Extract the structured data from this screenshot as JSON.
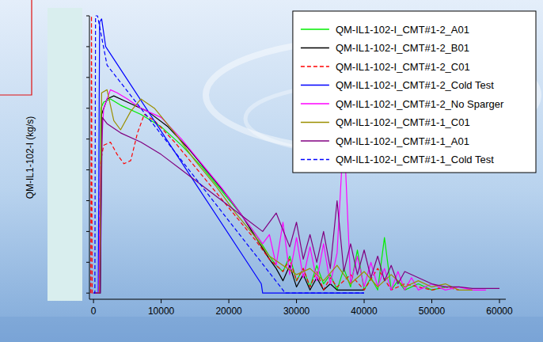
{
  "chart_data": {
    "type": "line",
    "y_label": "QM-IL1-102-I (kg/s)",
    "xlim": [
      -600,
      60000
    ],
    "xticks": [
      0,
      10000,
      20000,
      30000,
      40000,
      50000,
      60000
    ],
    "ylim": [
      -0.2,
      9
    ],
    "yticks": [
      0,
      1,
      2,
      3,
      4,
      5,
      6,
      7,
      8,
      9
    ],
    "tick_labels": "x",
    "grid": false,
    "legend": "top-right",
    "series": [
      {
        "name": "QM-IL1-102-I_CMT#1-2_A01",
        "color": "#00ee00",
        "line_style": "solid",
        "x": [
          0,
          900,
          1100,
          1500,
          2500,
          4000,
          7000,
          10000,
          13000,
          16000,
          19000,
          22000,
          24000,
          26000,
          27000,
          28000,
          29000,
          30000,
          31000,
          32000,
          33000,
          34000,
          35000,
          36000,
          37000,
          38000,
          39000,
          40000,
          41000,
          42000,
          43000,
          44000,
          45000,
          46000,
          48000,
          50000,
          52000
        ],
        "values": [
          0,
          0,
          6.0,
          6.2,
          6.3,
          6.1,
          5.8,
          5.4,
          4.8,
          4.1,
          3.3,
          2.5,
          1.9,
          1.2,
          0.9,
          0.7,
          1.2,
          0.4,
          0.8,
          0.2,
          0.9,
          0.3,
          0.6,
          0.1,
          0.8,
          0.2,
          1.4,
          0.1,
          0.5,
          0.1,
          1.8,
          0.1,
          0.4,
          0.1,
          0.3,
          0.1,
          0.2
        ]
      },
      {
        "name": "QM-IL1-102-I_CMT#1-2_B01",
        "color": "#000000",
        "line_style": "solid",
        "x": [
          0,
          1000,
          1200,
          2000,
          3000,
          5000,
          8000,
          11000,
          14000,
          17000,
          20000,
          22000,
          24000,
          26000,
          27000,
          28000,
          29000,
          30000,
          31000,
          32000,
          33000,
          34000,
          35000,
          36000,
          38000,
          40000
        ],
        "values": [
          0,
          0,
          5.8,
          6.3,
          6.4,
          6.2,
          5.9,
          5.4,
          4.7,
          3.9,
          3.1,
          2.5,
          1.8,
          1.1,
          0.8,
          0.4,
          0.9,
          0.2,
          0.6,
          0.1,
          0.5,
          0.1,
          0.3,
          0.1,
          0.1,
          0.1
        ]
      },
      {
        "name": "QM-IL1-102-I_CMT#1-2_C01",
        "color": "#ff0000",
        "line_style": "dashed",
        "x": [
          -400,
          -300,
          -200,
          800,
          1000,
          1500,
          2500,
          3500,
          4500,
          5500,
          6500,
          7500,
          9000,
          12000,
          15000,
          18000,
          21000,
          24000,
          26000,
          28000,
          29000,
          30000,
          31000,
          32000,
          33000,
          34000,
          35000,
          36000,
          38000,
          40000,
          42000,
          44000,
          46000,
          48000,
          50000,
          52000,
          54000
        ],
        "values": [
          0,
          9.0,
          0,
          0,
          4.2,
          4.8,
          4.9,
          4.5,
          4.2,
          4.3,
          5.2,
          5.8,
          5.6,
          4.9,
          4.1,
          3.3,
          2.5,
          1.7,
          1.1,
          0.7,
          1.1,
          0.4,
          0.8,
          0.2,
          0.7,
          0.1,
          0.5,
          0.2,
          0.6,
          0.1,
          0.8,
          0.1,
          0.3,
          0.2,
          0.1,
          0.2,
          0.1
        ]
      },
      {
        "name": "QM-IL1-102-I_CMT#1-2_Cold Test",
        "color": "#0000ff",
        "line_style": "solid",
        "x": [
          0,
          700,
          900,
          1200,
          1800,
          24800,
          25000,
          40000
        ],
        "values": [
          0,
          0,
          8.8,
          8.9,
          8.0,
          0.3,
          0,
          0
        ]
      },
      {
        "name": "QM-IL1-102-I_CMT#1-2_No Sparger",
        "color": "#ff00ff",
        "line_style": "solid",
        "x": [
          0,
          800,
          1000,
          1500,
          2500,
          3500,
          5000,
          7000,
          10000,
          13000,
          16000,
          19000,
          21000,
          23000,
          25000,
          26000,
          27000,
          28000,
          29000,
          30000,
          31000,
          32000,
          33000,
          34000,
          35000,
          36000,
          37000,
          38000,
          39000,
          40000,
          41000,
          42000,
          43000,
          44000,
          45000,
          46000,
          47000,
          48000,
          50000,
          52000,
          54000,
          56000,
          58000
        ],
        "values": [
          0,
          0,
          4.0,
          6.0,
          6.6,
          6.5,
          6.3,
          6.0,
          5.7,
          5.0,
          4.2,
          3.4,
          2.8,
          2.2,
          1.6,
          1.9,
          0.9,
          2.3,
          0.6,
          1.8,
          0.5,
          1.5,
          0.4,
          1.6,
          0.3,
          1.3,
          5.3,
          0.3,
          1.2,
          0.2,
          1.0,
          0.2,
          0.8,
          0.1,
          0.7,
          0.1,
          0.5,
          0.1,
          0.3,
          0.1,
          0.2,
          0.1,
          0.1
        ]
      },
      {
        "name": "QM-IL1-102-I_CMT#1-1_C01",
        "color": "#9b8f00",
        "line_style": "solid",
        "x": [
          0,
          900,
          1200,
          2000,
          3000,
          4000,
          5500,
          7000,
          9000,
          12000,
          15000,
          18000,
          21000,
          24000,
          26000,
          28000,
          30000,
          32000,
          34000,
          36000,
          38000,
          40000,
          42000,
          44000,
          46000,
          48000,
          50000,
          52000,
          54000,
          56000
        ],
        "values": [
          0,
          0,
          6.5,
          6.6,
          5.6,
          5.3,
          5.9,
          6.3,
          6.0,
          5.2,
          4.3,
          3.5,
          2.6,
          1.8,
          1.2,
          0.9,
          0.6,
          0.8,
          0.4,
          0.9,
          0.3,
          0.7,
          0.2,
          0.6,
          0.2,
          0.4,
          0.2,
          0.3,
          0.1,
          0.1
        ]
      },
      {
        "name": "QM-IL1-102-I_CMT#1-1_A01",
        "color": "#800080",
        "line_style": "solid",
        "x": [
          0,
          1000,
          1300,
          2000,
          4000,
          7000,
          10000,
          13000,
          16000,
          19000,
          22000,
          25000,
          27000,
          29000,
          30000,
          31000,
          32000,
          33000,
          34000,
          35000,
          36000,
          37000,
          38000,
          39000,
          40000,
          41000,
          42000,
          43000,
          44000,
          45000,
          46000,
          48000,
          50000,
          52000,
          54000,
          56000,
          58000,
          60000
        ],
        "values": [
          0,
          0,
          5.7,
          5.5,
          5.2,
          4.9,
          4.5,
          4.0,
          3.5,
          3.0,
          2.5,
          2.0,
          2.6,
          1.5,
          2.3,
          1.1,
          1.9,
          1.0,
          2.0,
          0.8,
          3.0,
          0.7,
          1.6,
          0.6,
          1.4,
          0.5,
          1.2,
          0.4,
          0.9,
          0.3,
          0.7,
          0.5,
          0.3,
          0.2,
          0.2,
          0.15,
          0.15,
          0.15
        ]
      },
      {
        "name": "QM-IL1-102-I_CMT#1-1_Cold Test",
        "color": "#0000ff",
        "line_style": "dashed",
        "x": [
          0,
          200,
          300,
          600,
          2000,
          28000,
          28300,
          40000
        ],
        "values": [
          0,
          0,
          9.0,
          9.0,
          7.4,
          0.1,
          0,
          0
        ]
      }
    ]
  }
}
